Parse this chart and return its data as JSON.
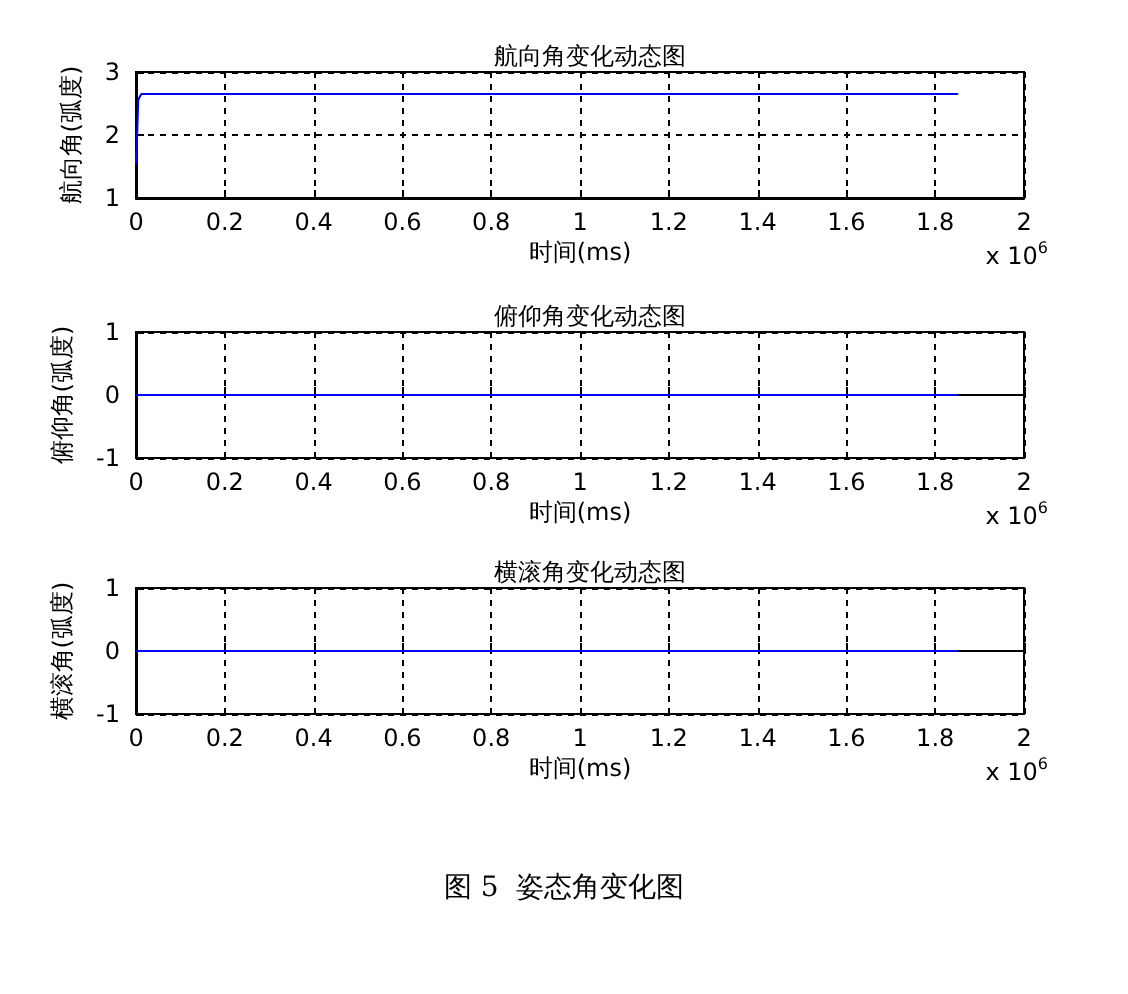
{
  "chart_data": [
    {
      "type": "line",
      "title": "航向角变化动态图",
      "xlabel": "时间(ms)",
      "ylabel": "航向角(弧度)",
      "series": [
        {
          "color": "#0000ff",
          "x": [
            0,
            0.003,
            0.005,
            0.008,
            0.012,
            1.85
          ],
          "values": [
            1.55,
            2.1,
            2.55,
            2.6,
            2.65,
            2.65
          ]
        }
      ],
      "xlim": [
        0,
        2
      ],
      "xticks": [
        0,
        0.2,
        0.4,
        0.6,
        0.8,
        1,
        1.2,
        1.4,
        1.6,
        1.8,
        2
      ],
      "ylim": [
        1,
        3
      ],
      "yticks": [
        1,
        2,
        3
      ],
      "grid": true,
      "marker": "none",
      "line_style": "solid",
      "annotations": [
        "x 10$^{6}$"
      ]
    },
    {
      "type": "line",
      "title": "俯仰角变化动态图",
      "xlabel": "时间(ms)",
      "ylabel": "俯仰角(弧度)",
      "series": [
        {
          "color": "#0000ff",
          "x": [
            0,
            1.85
          ],
          "values": [
            0,
            0
          ]
        }
      ],
      "xlim": [
        0,
        2
      ],
      "xticks": [
        0,
        0.2,
        0.4,
        0.6,
        0.8,
        1,
        1.2,
        1.4,
        1.6,
        1.8,
        2
      ],
      "ylim": [
        -1,
        1
      ],
      "yticks": [
        -1,
        0,
        1
      ],
      "grid": true,
      "marker": "none",
      "line_style": "solid",
      "annotations": [
        "x 10$^{6}$"
      ]
    },
    {
      "type": "line",
      "title": "横滚角变化动态图",
      "xlabel": "时间(ms)",
      "ylabel": "横滚角(弧度)",
      "series": [
        {
          "color": "#0000ff",
          "x": [
            0,
            1.85
          ],
          "values": [
            0,
            0
          ]
        }
      ],
      "xlim": [
        0,
        2
      ],
      "xticks": [
        0,
        0.2,
        0.4,
        0.6,
        0.8,
        1,
        1.2,
        1.4,
        1.6,
        1.8,
        2
      ],
      "ylim": [
        -1,
        1
      ],
      "yticks": [
        -1,
        0,
        1
      ],
      "grid": true,
      "marker": "none",
      "line_style": "solid",
      "annotations": [
        "x 10$^{6}$",
        "图 5  姿态角变化图"
      ]
    }
  ]
}
